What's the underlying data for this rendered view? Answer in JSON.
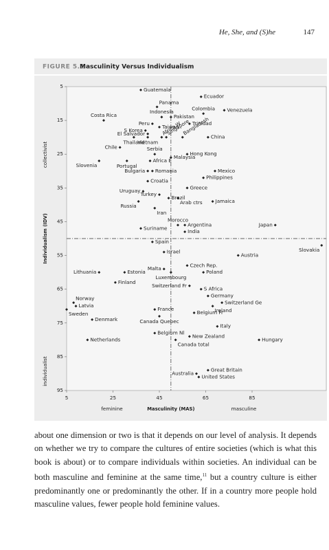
{
  "header": {
    "running_title": "He, She, and (S)he",
    "page_number": "147"
  },
  "chart_data": {
    "type": "scatter",
    "figure_label": "FIGURE 5.1",
    "title": "Masculinity Versus Individualism",
    "x_label": "Masculinity (MAS)",
    "y_label": "Individualism (IDV)",
    "x_annotations": [
      "feminine",
      "masculine"
    ],
    "y_annotations": [
      "collectivist",
      "individualist"
    ],
    "labels": [
      "Guatemala",
      "Ecuador",
      "Panama",
      "Colombia",
      "Venezuela",
      "Indonesia",
      "Pakistan",
      "Costa Rica",
      "Peru",
      "Taiwan",
      "Trinidad",
      "S Korea",
      "Singapore",
      "El Salvador",
      "Africa W",
      "Bangladesh",
      "China",
      "Thailand",
      "Vietnam",
      "Chile",
      "Serbia",
      "Hong Kong",
      "Malaysia",
      "Slovenia",
      "Portugal",
      "Africa E",
      "Bulgaria",
      "Romania",
      "Mexico",
      "Philippines",
      "Croatia",
      "Greece",
      "Uruguay",
      "Brazil",
      "Turkey",
      "Arab ctrs",
      "Jamaica",
      "Russia",
      "Iran",
      "Morocco",
      "Argentina",
      "Suriname",
      "Japan",
      "India",
      "Slovakia",
      "Spain",
      "Israel",
      "Austria",
      "Malta",
      "Czech Rep.",
      "Lithuania",
      "Estonia",
      "Luxembourg",
      "Poland",
      "Finland",
      "Switzerland Fr",
      "S Africa",
      "Germany",
      "Switzerland Ge",
      "Norway",
      "Latvia",
      "Ireland",
      "France",
      "Sweden",
      "Belgium Fr",
      "Denmark",
      "Canada Quebec",
      "Italy",
      "Belgium Nl",
      "New Zealand",
      "Netherlands",
      "Hungary",
      "Canada total",
      "Great Britain",
      "Australia",
      "United States"
    ],
    "x": [
      37,
      63,
      44,
      64,
      73,
      46,
      50,
      21,
      42,
      45,
      58,
      39,
      48,
      40,
      46,
      55,
      66,
      34,
      40,
      28,
      43,
      57,
      50,
      19,
      31,
      41,
      40,
      42,
      69,
      64,
      40,
      57,
      38,
      49,
      45,
      53,
      68,
      36,
      43,
      53,
      56,
      37,
      95,
      56,
      115,
      42,
      47,
      79,
      47,
      57,
      19,
      30,
      50,
      64,
      26,
      58,
      63,
      66,
      72,
      8,
      9,
      68,
      43,
      5,
      60,
      16,
      45,
      70,
      43,
      58,
      14,
      88,
      52,
      66,
      61,
      62
    ],
    "values": [
      6,
      8,
      11,
      13,
      12,
      14,
      14,
      15,
      16,
      17,
      16,
      18,
      20,
      19,
      20,
      20,
      20,
      20,
      20,
      23,
      25,
      25,
      26,
      27,
      27,
      27,
      30,
      30,
      30,
      32,
      33,
      35,
      36,
      38,
      37,
      38,
      39,
      39,
      41,
      46,
      46,
      47,
      46,
      48,
      52,
      51,
      54,
      55,
      59,
      58,
      60,
      60,
      60,
      60,
      63,
      64,
      65,
      67,
      69,
      69,
      70,
      70,
      71,
      71,
      72,
      74,
      73,
      76,
      78,
      79,
      80,
      80,
      80,
      89,
      90,
      91
    ],
    "color": "#222222",
    "xlim": [
      5,
      117
    ],
    "xticks": [
      5,
      25,
      45,
      65,
      85
    ],
    "ylim": [
      5,
      95
    ],
    "yticks": [
      5,
      15,
      25,
      35,
      45,
      55,
      65,
      75,
      85,
      95
    ],
    "y_reversed": true,
    "x_reference": 50,
    "y_reference": 50
  },
  "body": {
    "text_before_note": "about one dimension or two is that it depends on our level of analysis. It depends on whether we try to compare the cultures of entire societies (which is what this book is about) or to compare individuals within societies. An individual can be both masculine and feminine at the same time,",
    "note": "11",
    "text_after_note": " but a country culture is either predominantly one or predominantly the other. If in a country more people hold masculine values, fewer people hold feminine values."
  }
}
